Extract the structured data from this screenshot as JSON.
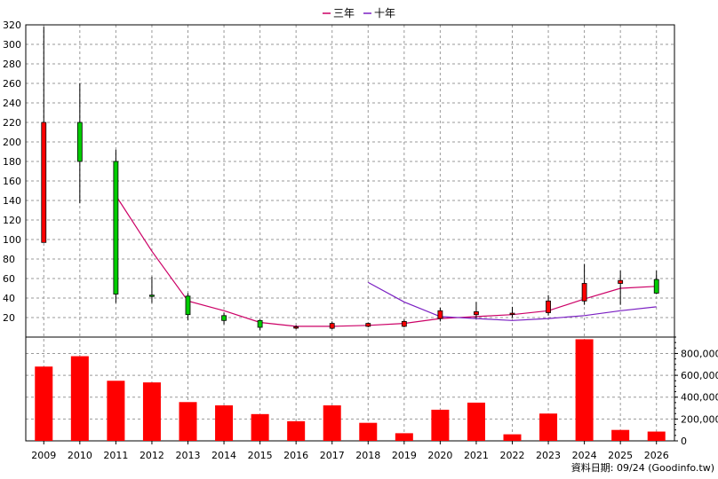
{
  "legend": {
    "ma3_label": "三年",
    "ma10_label": "十年",
    "ma3_color": "#cc0066",
    "ma10_color": "#7a1fc2"
  },
  "footer_text": "資料日期: 09/24  (Goodinfo.tw)",
  "colors": {
    "up_candle": "#ff0000",
    "down_candle": "#00cc00",
    "volume_bar": "#ff0000",
    "grid": "#999999"
  },
  "chart_data": [
    {
      "type": "candlestick",
      "categories": [
        "2009",
        "2010",
        "2011",
        "2012",
        "2013",
        "2014",
        "2015",
        "2016",
        "2017",
        "2018",
        "2019",
        "2020",
        "2021",
        "2022",
        "2023",
        "2024",
        "2025",
        "2026"
      ],
      "ylim": [
        0,
        320
      ],
      "yticks": [
        20,
        40,
        60,
        80,
        100,
        120,
        140,
        160,
        180,
        200,
        220,
        240,
        260,
        280,
        300,
        320
      ],
      "grid": true,
      "candles": [
        {
          "open": 97,
          "close": 220,
          "high": 318,
          "low": 97
        },
        {
          "open": 220,
          "close": 180,
          "high": 260,
          "low": 137
        },
        {
          "open": 180,
          "close": 44,
          "high": 192,
          "low": 35
        },
        {
          "open": 43,
          "close": 42,
          "high": 62,
          "low": 35
        },
        {
          "open": 42,
          "close": 23,
          "high": 45,
          "low": 17
        },
        {
          "open": 22,
          "close": 17,
          "high": 25,
          "low": 13
        },
        {
          "open": 17,
          "close": 10,
          "high": 18,
          "low": 7
        },
        {
          "open": 10,
          "close": 10.5,
          "high": 12,
          "low": 8
        },
        {
          "open": 9,
          "close": 14,
          "high": 16,
          "low": 8
        },
        {
          "open": 11,
          "close": 14,
          "high": 15,
          "low": 10
        },
        {
          "open": 11,
          "close": 16,
          "high": 18,
          "low": 10
        },
        {
          "open": 19,
          "close": 27,
          "high": 30,
          "low": 16
        },
        {
          "open": 23,
          "close": 26,
          "high": 36,
          "low": 19
        },
        {
          "open": 24,
          "close": 24.5,
          "high": 31,
          "low": 20
        },
        {
          "open": 25,
          "close": 37,
          "high": 43,
          "low": 22
        },
        {
          "open": 37,
          "close": 55,
          "high": 75,
          "low": 33
        },
        {
          "open": 55,
          "close": 58,
          "high": 68,
          "low": 33
        },
        {
          "open": 59,
          "close": 45,
          "high": 68,
          "low": 44
        }
      ],
      "series": [
        {
          "name": "三年",
          "values": [
            null,
            null,
            145,
            88,
            37,
            27,
            15,
            11,
            11,
            12,
            14,
            19,
            21,
            23,
            27,
            39,
            50,
            52
          ]
        },
        {
          "name": "十年",
          "values": [
            null,
            null,
            null,
            null,
            null,
            null,
            null,
            null,
            null,
            56,
            36,
            21,
            19,
            17,
            19,
            22,
            27,
            31
          ]
        }
      ]
    },
    {
      "type": "bar",
      "categories": [
        "2009",
        "2010",
        "2011",
        "2012",
        "2013",
        "2014",
        "2015",
        "2016",
        "2017",
        "2018",
        "2019",
        "2020",
        "2021",
        "2022",
        "2023",
        "2024",
        "2025",
        "2026"
      ],
      "values": [
        680000,
        775000,
        550000,
        535000,
        355000,
        325000,
        245000,
        180000,
        325000,
        165000,
        70000,
        285000,
        350000,
        60000,
        250000,
        930000,
        100000,
        85000
      ],
      "ylim": [
        0,
        950000
      ],
      "yticks": [
        "0",
        "200,000",
        "400,000",
        "600,000",
        "800,000"
      ],
      "ytick_values": [
        0,
        200000,
        400000,
        600000,
        800000
      ]
    }
  ]
}
